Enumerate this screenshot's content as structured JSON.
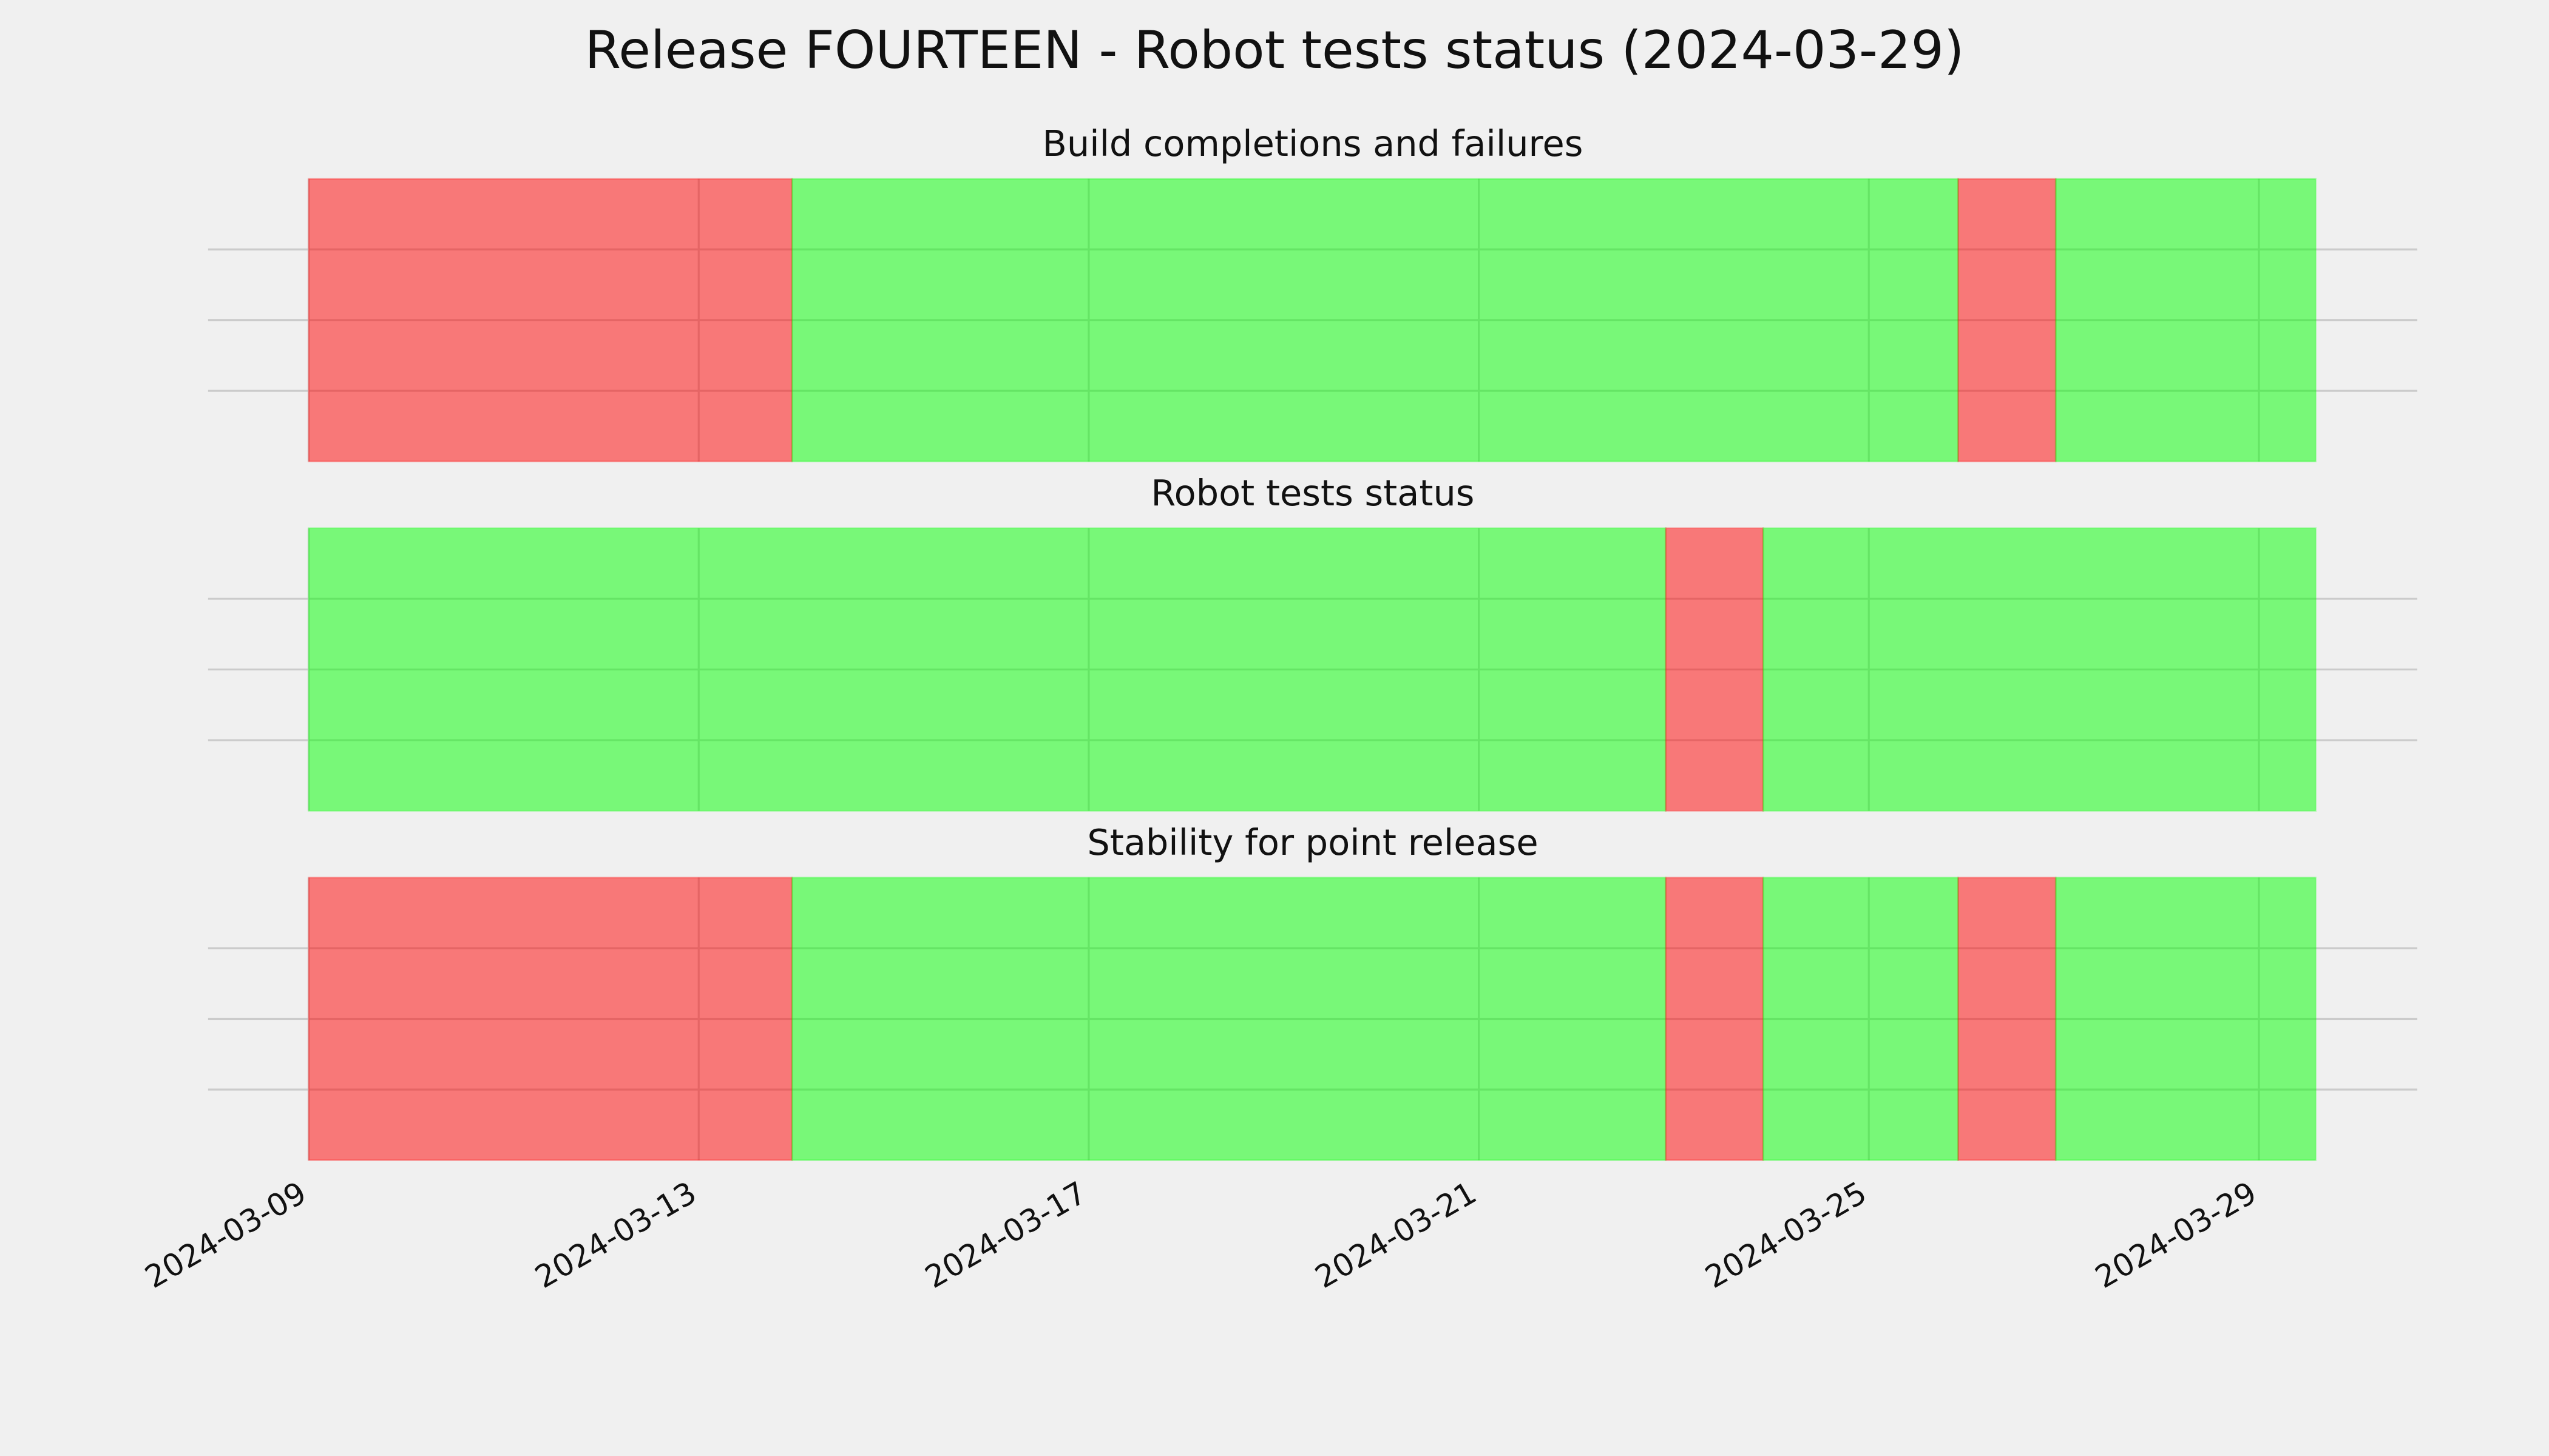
{
  "title": "Release FOURTEEN - Robot tests status (2024-03-29)",
  "x_axis": {
    "xlim": [
      "2024-03-07T23:15",
      "2024-03-30T15:00"
    ],
    "xticks": [
      "2024-03-09",
      "2024-03-13",
      "2024-03-17",
      "2024-03-21",
      "2024-03-25",
      "2024-03-29"
    ]
  },
  "chart_data": [
    {
      "type": "timeline",
      "title": "Build completions and failures",
      "ylim": [
        0,
        1
      ],
      "yticks": [
        0.25,
        0.5,
        0.75
      ],
      "grid": true,
      "segments": [
        {
          "start": "2024-03-09T00:00",
          "end": "2024-03-13T23:00",
          "color": "#ff0000"
        },
        {
          "start": "2024-03-13T23:00",
          "end": "2024-03-25T22:00",
          "color": "#00ff00"
        },
        {
          "start": "2024-03-25T22:00",
          "end": "2024-03-26T22:00",
          "color": "#ff0000"
        },
        {
          "start": "2024-03-26T22:00",
          "end": "2024-03-29T14:00",
          "color": "#00ff00"
        }
      ]
    },
    {
      "type": "timeline",
      "title": "Robot tests status",
      "ylim": [
        0,
        1
      ],
      "yticks": [
        0.25,
        0.5,
        0.75
      ],
      "grid": true,
      "segments": [
        {
          "start": "2024-03-09T00:00",
          "end": "2024-03-22T22:00",
          "color": "#00ff00"
        },
        {
          "start": "2024-03-22T22:00",
          "end": "2024-03-23T22:00",
          "color": "#ff0000"
        },
        {
          "start": "2024-03-23T22:00",
          "end": "2024-03-29T14:00",
          "color": "#00ff00"
        }
      ]
    },
    {
      "type": "timeline",
      "title": "Stability for point release",
      "ylim": [
        0,
        1
      ],
      "yticks": [
        0.25,
        0.5,
        0.75
      ],
      "grid": true,
      "segments": [
        {
          "start": "2024-03-09T00:00",
          "end": "2024-03-13T23:00",
          "color": "#ff0000"
        },
        {
          "start": "2024-03-13T23:00",
          "end": "2024-03-22T22:00",
          "color": "#00ff00"
        },
        {
          "start": "2024-03-22T22:00",
          "end": "2024-03-23T22:00",
          "color": "#ff0000"
        },
        {
          "start": "2024-03-23T22:00",
          "end": "2024-03-25T22:00",
          "color": "#00ff00"
        },
        {
          "start": "2024-03-25T22:00",
          "end": "2024-03-26T22:00",
          "color": "#ff0000"
        },
        {
          "start": "2024-03-26T22:00",
          "end": "2024-03-29T14:00",
          "color": "#00ff00"
        }
      ]
    }
  ]
}
